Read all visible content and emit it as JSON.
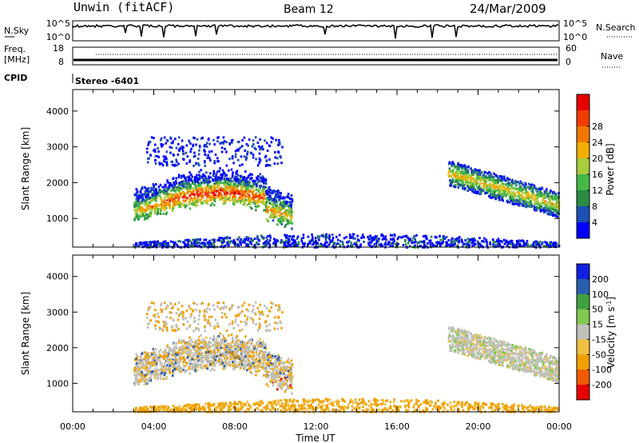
{
  "header": {
    "radar": "Unwin (fitACF)",
    "beam": "Beam 12",
    "date": "24/Mar/2009"
  },
  "left_labels": {
    "nsky": "N.Sky",
    "freq_top": "Freq.",
    "freq_unit": "[MHz]",
    "cpid": "CPID"
  },
  "right_labels": {
    "nsearch": "N.Search",
    "nave": "Nave"
  },
  "nsky_ticks": [
    "10^5",
    "10^0"
  ],
  "nsearch_ticks": [
    "10^5",
    "10^0"
  ],
  "freq_ticks": [
    "18",
    "8"
  ],
  "nave_ticks": [
    "60",
    "0"
  ],
  "cpid_text": "Stereo -6401",
  "colors": {
    "power": [
      "#0000ff",
      "#1e4fb4",
      "#2a8c46",
      "#46b84a",
      "#a8cc3c",
      "#f0b000",
      "#f07800",
      "#f03c00",
      "#e60000"
    ],
    "velocity": [
      "#e60000",
      "#f05a00",
      "#f0a000",
      "#f0c040",
      "#c0c0b8",
      "#80c850",
      "#40a040",
      "#2860b0",
      "#1020e0"
    ],
    "nsky_trace": "#000000"
  },
  "chart_data": [
    {
      "type": "heatmap",
      "panel": "power",
      "xlabel": "",
      "ylabel": "Slant Range [km]",
      "x_ticks": [
        "00:00",
        "04:00",
        "08:00",
        "12:00",
        "16:00",
        "20:00",
        "00:00"
      ],
      "y_ticks": [
        1000,
        2000,
        3000,
        4000
      ],
      "ylim": [
        200,
        4600
      ],
      "xlim_hours": [
        0,
        24
      ],
      "colorbar": {
        "label": "Power [dB]",
        "ticks": [
          4,
          8,
          12,
          16,
          20,
          24,
          28
        ],
        "range": [
          0,
          32
        ]
      },
      "regions": [
        {
          "t_start": 3.0,
          "t_end": 10.8,
          "r_min": 800,
          "r_max": 3300,
          "peak_db": 28
        },
        {
          "t_start": 18.5,
          "t_end": 24.0,
          "r_min": 800,
          "r_max": 3000,
          "peak_db": 20
        },
        {
          "t_start": 3.0,
          "t_end": 24.0,
          "r_min": 200,
          "r_max": 600,
          "peak_db": 6
        }
      ]
    },
    {
      "type": "heatmap",
      "panel": "velocity",
      "xlabel": "Time UT",
      "ylabel": "Slant Range [km]",
      "x_ticks": [
        "00:00",
        "04:00",
        "08:00",
        "12:00",
        "16:00",
        "20:00",
        "00:00"
      ],
      "y_ticks": [
        1000,
        2000,
        3000,
        4000
      ],
      "ylim": [
        200,
        4600
      ],
      "xlim_hours": [
        0,
        24
      ],
      "colorbar": {
        "label": "Velocity [m s^-1]",
        "ticks": [
          200,
          100,
          50,
          15,
          -15,
          -50,
          -100,
          -200
        ],
        "range": [
          -250,
          250
        ]
      },
      "regions": [
        {
          "t_start": 3.0,
          "t_end": 10.8,
          "r_min": 800,
          "r_max": 3300
        },
        {
          "t_start": 18.5,
          "t_end": 24.0,
          "r_min": 800,
          "r_max": 3000
        },
        {
          "t_start": 3.0,
          "t_end": 24.0,
          "r_min": 200,
          "r_max": 600
        }
      ]
    }
  ]
}
